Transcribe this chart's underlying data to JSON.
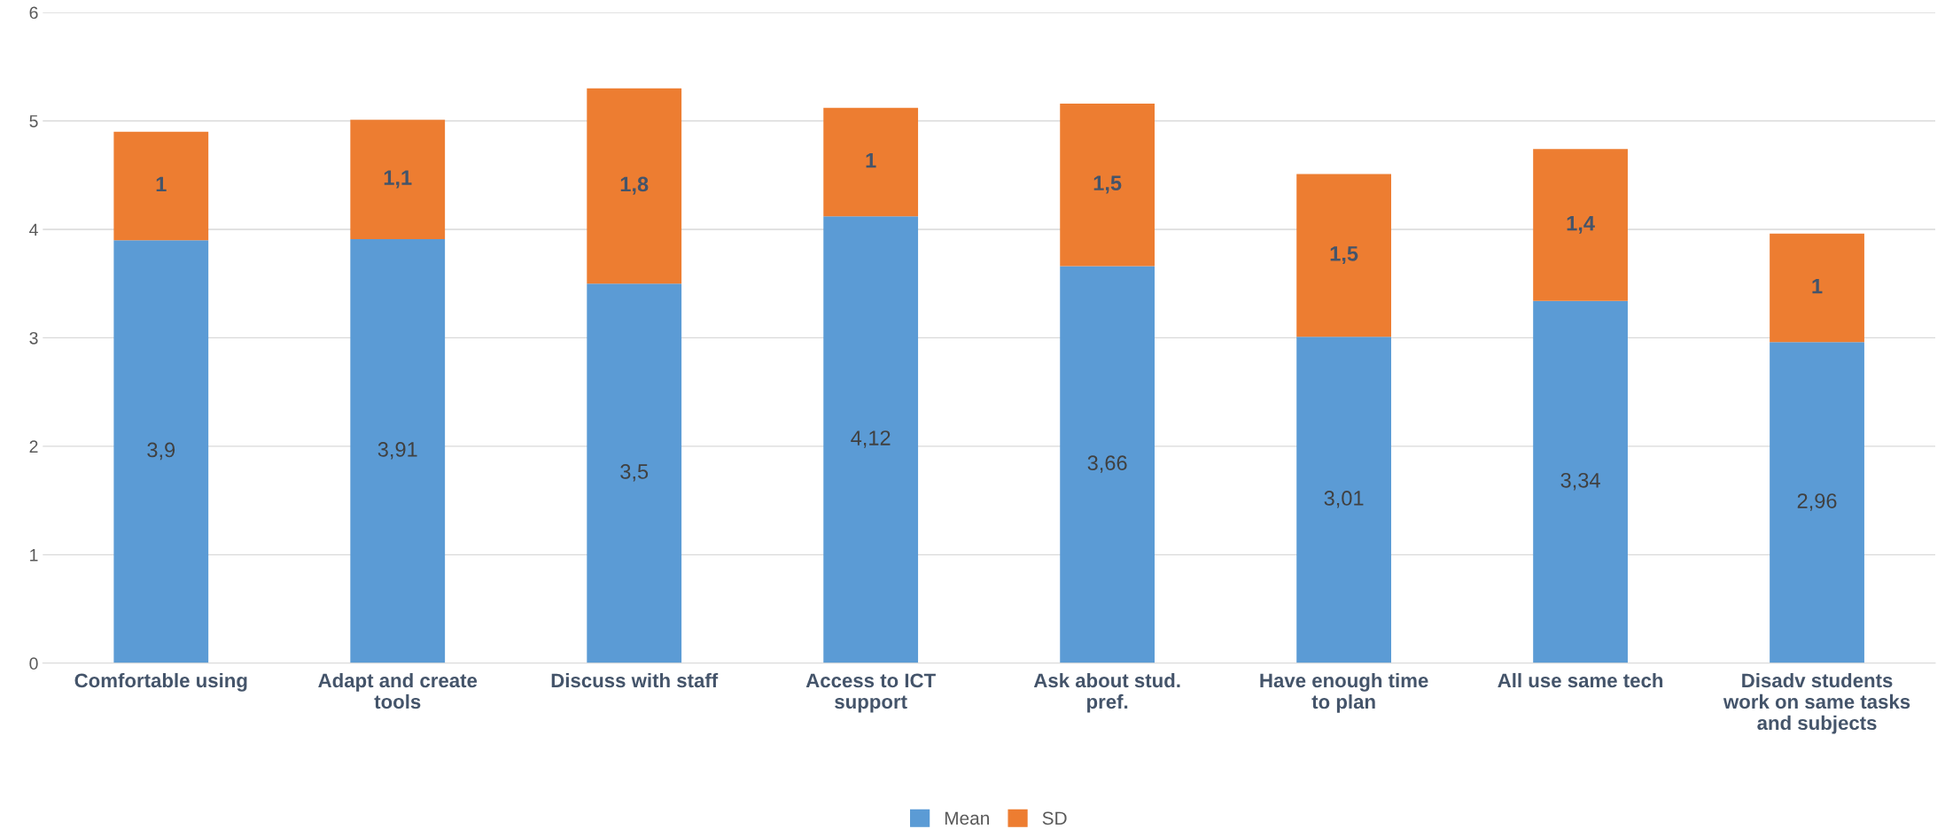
{
  "chart_data": {
    "type": "bar",
    "stacked": true,
    "categories": [
      "Comfortable using",
      "Adapt and create tools",
      "Discuss with staff",
      "Access to ICT support",
      "Ask about stud. pref.",
      "Have enough time to plan",
      "All use same tech",
      "Disadv students work on same tasks and subjects"
    ],
    "series": [
      {
        "name": "Mean",
        "color": "#5b9bd5",
        "values": [
          3.9,
          3.91,
          3.5,
          4.12,
          3.66,
          3.01,
          3.34,
          2.96
        ],
        "value_labels": [
          "3,9",
          "3,91",
          "3,5",
          "4,12",
          "3,66",
          "3,01",
          "3,34",
          "2,96"
        ]
      },
      {
        "name": "SD",
        "color": "#ed7d31",
        "values": [
          1,
          1.1,
          1.8,
          1,
          1.5,
          1.5,
          1.4,
          1
        ],
        "value_labels": [
          "1",
          "1,1",
          "1,8",
          "1",
          "1,5",
          "1,5",
          "1,4",
          "1"
        ]
      }
    ],
    "ylim": [
      0,
      6
    ],
    "yticks": [
      0,
      1,
      2,
      3,
      4,
      5,
      6
    ],
    "grid": "y",
    "legend": "bottom"
  }
}
